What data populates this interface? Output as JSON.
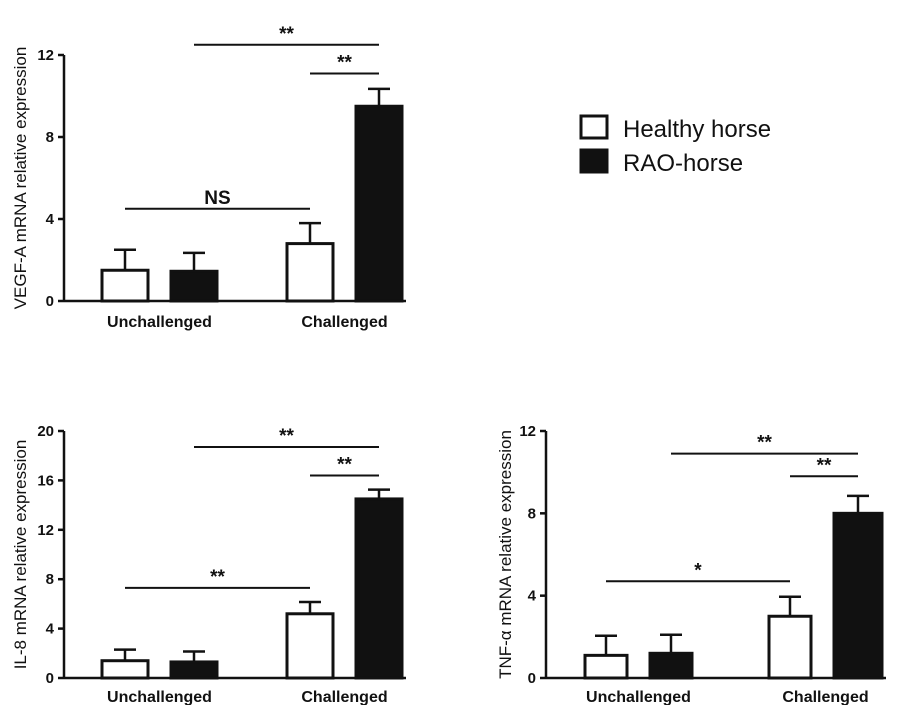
{
  "legend": {
    "items": [
      {
        "label": "Healthy horse",
        "fill": "#ffffff"
      },
      {
        "label": "RAO-horse",
        "fill": "#111111"
      }
    ],
    "placement": "right of top chart"
  },
  "colors": {
    "healthy": "#ffffff",
    "rao": "#111111",
    "axis": "#111111"
  },
  "chart_data": [
    {
      "type": "bar",
      "ylabel": "VEGF-A mRNA relative expression",
      "categories": [
        "Unchallenged",
        "Challenged"
      ],
      "series": [
        {
          "name": "Healthy horse",
          "values": [
            1.5,
            2.8
          ],
          "errors": [
            1.0,
            1.0
          ]
        },
        {
          "name": "RAO-horse",
          "values": [
            1.45,
            9.5
          ],
          "errors": [
            0.9,
            0.85
          ]
        }
      ],
      "ylim": [
        0,
        12
      ],
      "yticks": [
        0,
        4,
        8,
        12
      ],
      "yticklabels": [
        "0",
        "4",
        "8",
        "12"
      ],
      "annotations": [
        {
          "text": "**",
          "from": [
            0,
            1
          ],
          "to": [
            1,
            1
          ],
          "y": 12.5
        },
        {
          "text": "**",
          "from": [
            1,
            0
          ],
          "to": [
            1,
            1
          ],
          "y": 11.1
        },
        {
          "text": "NS",
          "from": [
            0,
            0
          ],
          "to": [
            1,
            0
          ],
          "y": 4.5
        }
      ]
    },
    {
      "type": "bar",
      "ylabel": "IL-8 mRNA relative expression",
      "categories": [
        "Unchallenged",
        "Challenged"
      ],
      "series": [
        {
          "name": "Healthy horse",
          "values": [
            1.4,
            5.2
          ],
          "errors": [
            0.9,
            0.95
          ]
        },
        {
          "name": "RAO-horse",
          "values": [
            1.3,
            14.5
          ],
          "errors": [
            0.85,
            0.75
          ]
        }
      ],
      "ylim": [
        0,
        20
      ],
      "yticks": [
        0,
        4,
        8,
        12,
        16,
        20
      ],
      "yticklabels": [
        "0",
        "4",
        "8",
        "12",
        "16",
        "20"
      ],
      "annotations": [
        {
          "text": "**",
          "from": [
            0,
            1
          ],
          "to": [
            1,
            1
          ],
          "y": 18.7
        },
        {
          "text": "**",
          "from": [
            1,
            0
          ],
          "to": [
            1,
            1
          ],
          "y": 16.4
        },
        {
          "text": "**",
          "from": [
            0,
            0
          ],
          "to": [
            1,
            0
          ],
          "y": 7.3
        }
      ]
    },
    {
      "type": "bar",
      "ylabel": "TNF-α mRNA relative expression",
      "categories": [
        "Unchallenged",
        "Challenged"
      ],
      "series": [
        {
          "name": "Healthy horse",
          "values": [
            1.1,
            3.0
          ],
          "errors": [
            0.95,
            0.95
          ]
        },
        {
          "name": "RAO-horse",
          "values": [
            1.2,
            8.0
          ],
          "errors": [
            0.9,
            0.85
          ]
        }
      ],
      "ylim": [
        0,
        12
      ],
      "yticks": [
        0,
        4,
        8,
        12
      ],
      "yticklabels": [
        "0",
        "4",
        "8",
        "12"
      ],
      "annotations": [
        {
          "text": "**",
          "from": [
            0,
            1
          ],
          "to": [
            1,
            1
          ],
          "y": 10.9
        },
        {
          "text": "**",
          "from": [
            1,
            0
          ],
          "to": [
            1,
            1
          ],
          "y": 9.8
        },
        {
          "text": "*",
          "from": [
            0,
            0
          ],
          "to": [
            1,
            0
          ],
          "y": 4.7
        }
      ]
    }
  ]
}
